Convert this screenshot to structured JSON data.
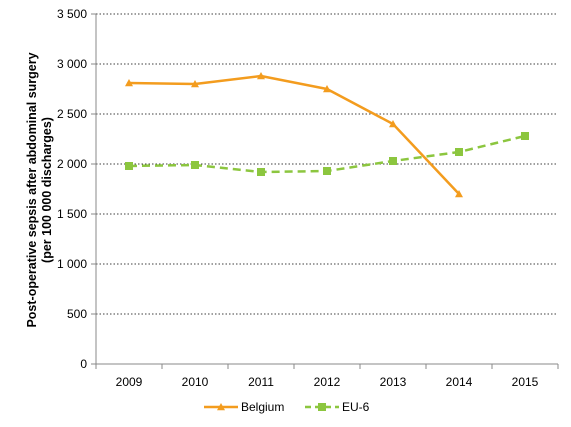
{
  "chart_data": {
    "type": "line",
    "ylabel_lines": [
      "Post-operative sepsis  after abdominal surgery",
      "(per 100 000 discharges)"
    ],
    "xlabel": "",
    "categories": [
      "2009",
      "2010",
      "2011",
      "2012",
      "2013",
      "2014",
      "2015"
    ],
    "y_tick_labels": [
      "0",
      "500",
      "1 000",
      "1 500",
      "2 000",
      "2 500",
      "3 000",
      "3 500"
    ],
    "ylim": [
      0,
      3500
    ],
    "y_step": 500,
    "grid": "horizontal dotted",
    "legend_position": "bottom-center",
    "series": [
      {
        "name": "Belgium",
        "color": "#F39C1E",
        "marker": "triangle",
        "dashed": false,
        "values": [
          2810,
          2800,
          2880,
          2750,
          2400,
          1700,
          null
        ]
      },
      {
        "name": "EU-6",
        "color": "#8CC63F",
        "marker": "square",
        "dashed": true,
        "values": [
          1980,
          1990,
          1920,
          1930,
          2030,
          2120,
          2280
        ]
      }
    ]
  }
}
